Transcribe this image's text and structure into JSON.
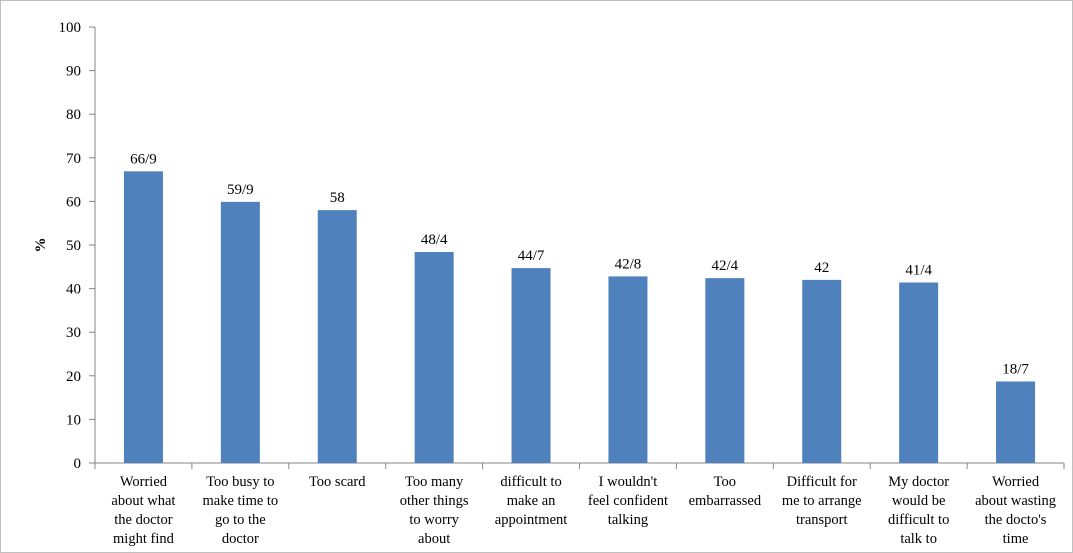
{
  "chart_data": {
    "type": "bar",
    "categories": [
      [
        "Worried",
        "about what",
        "the doctor",
        "might find"
      ],
      [
        "Too busy to",
        "make time to",
        "go to the",
        "doctor"
      ],
      [
        "Too scard"
      ],
      [
        "Too many",
        "other things",
        "to worry",
        "about"
      ],
      [
        "difficult to",
        "make an",
        "appointment"
      ],
      [
        "I wouldn't",
        "feel confident",
        "talking"
      ],
      [
        "Too",
        "embarrassed"
      ],
      [
        "Difficult for",
        "me to arrange",
        "transport"
      ],
      [
        "My doctor",
        "would be",
        "difficult to",
        "talk to"
      ],
      [
        "Worried",
        "about wasting",
        "the docto's",
        "time"
      ]
    ],
    "values": [
      66.9,
      59.9,
      58,
      48.4,
      44.7,
      42.8,
      42.4,
      42,
      41.4,
      18.7
    ],
    "data_labels": [
      "66/9",
      "59/9",
      "58",
      "48/4",
      "44/7",
      "42/8",
      "42/4",
      "42",
      "41/4",
      "18/7"
    ],
    "ylabel": "%",
    "xlabel": "",
    "title": "",
    "ylim": [
      0,
      100
    ],
    "yticks": [
      0,
      10,
      20,
      30,
      40,
      50,
      60,
      70,
      80,
      90,
      100
    ],
    "grid": false,
    "legend": "none",
    "bar_color": "#4f81bd",
    "axis_color": "#868686"
  }
}
